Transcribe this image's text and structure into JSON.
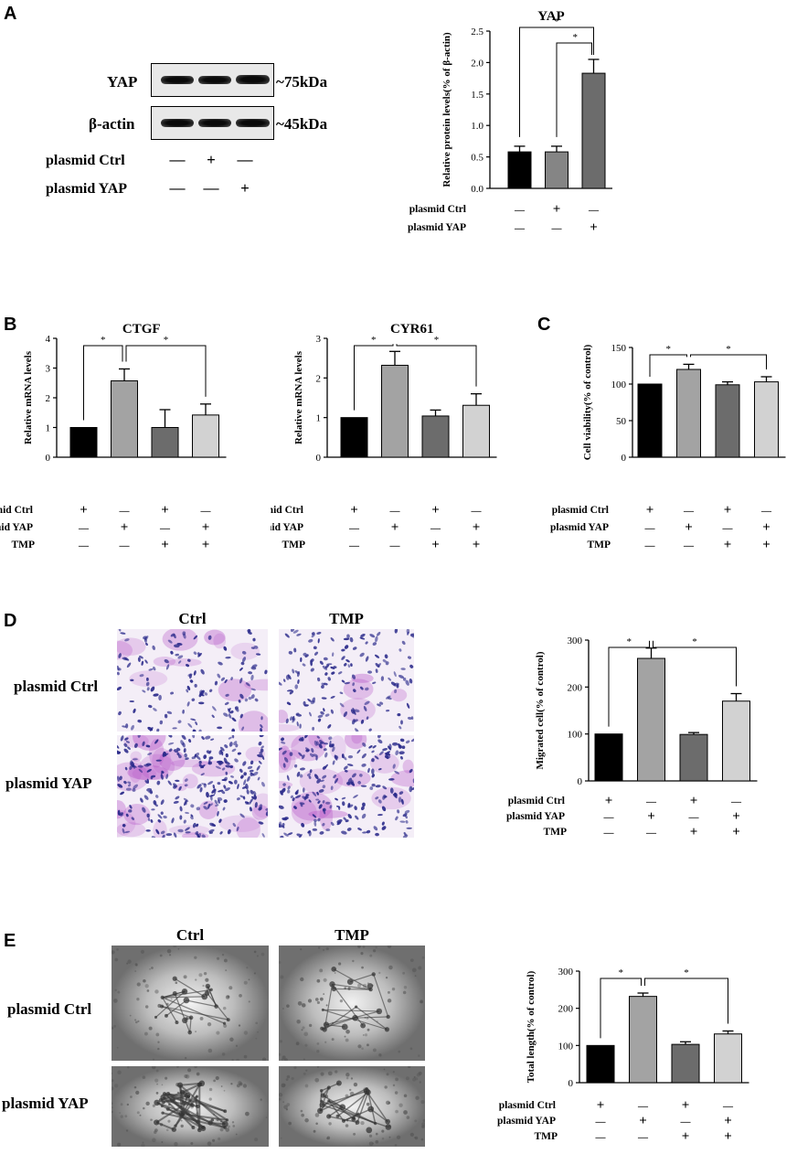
{
  "panels": {
    "A": "A",
    "B": "B",
    "C": "C",
    "D": "D",
    "E": "E"
  },
  "blot": {
    "rows": [
      {
        "name": "YAP",
        "size": "~75kDa"
      },
      {
        "name": "β-actin",
        "size": "~45kDa"
      }
    ],
    "conditions": [
      {
        "label": "plasmid Ctrl",
        "signs": [
          "—",
          "+",
          "—"
        ]
      },
      {
        "label": "plasmid YAP",
        "signs": [
          "—",
          "—",
          "+"
        ]
      }
    ]
  },
  "micro": {
    "col_labels": [
      "Ctrl",
      "TMP"
    ],
    "row_labels": [
      "plasmid Ctrl",
      "plasmid YAP"
    ]
  },
  "colors": {
    "black": "#000000",
    "mid_grey": "#858585",
    "light_grey": "#a3a3a3",
    "dark_grey": "#6c6c6c",
    "pale_grey": "#d2d2d2",
    "stain_purple": "#b14bc5",
    "nuclei_blue": "#2a2a8a",
    "tube_grey": "#8a8a8a"
  },
  "chart_data": [
    {
      "id": "yap",
      "type": "bar",
      "title": "YAP",
      "ylabel": "Relative protein levels(% of β-actin)",
      "ylim": [
        0,
        2.5
      ],
      "yticks": [
        "0.0",
        "0.5",
        "1.0",
        "1.5",
        "2.0",
        "2.5"
      ],
      "values": [
        0.58,
        0.58,
        1.83
      ],
      "errors": [
        0.09,
        0.09,
        0.22
      ],
      "colors": [
        "#000000",
        "#858585",
        "#6c6c6c"
      ],
      "conditions": [
        {
          "label": "plasmid Ctrl",
          "signs": [
            "—",
            "+",
            "—"
          ]
        },
        {
          "label": "plasmid YAP",
          "signs": [
            "—",
            "—",
            "+"
          ]
        }
      ],
      "significance": [
        {
          "from": 0,
          "to": 2,
          "label": "*"
        },
        {
          "from": 1,
          "to": 2,
          "label": "*"
        }
      ]
    },
    {
      "id": "ctgf",
      "type": "bar",
      "title": "CTGF",
      "ylabel": "Relative mRNA levels",
      "ylim": [
        0,
        4
      ],
      "yticks": [
        "0",
        "1",
        "2",
        "3",
        "4"
      ],
      "values": [
        1.0,
        2.57,
        1.0,
        1.42
      ],
      "errors": [
        0,
        0.4,
        0.6,
        0.37
      ],
      "colors": [
        "#000000",
        "#a3a3a3",
        "#6c6c6c",
        "#d2d2d2"
      ],
      "conditions": [
        {
          "label": "plasmid Ctrl",
          "signs": [
            "+",
            "—",
            "+",
            "—"
          ]
        },
        {
          "label": "plasmid YAP",
          "signs": [
            "—",
            "+",
            "—",
            "+"
          ]
        },
        {
          "label": "TMP",
          "signs": [
            "—",
            "—",
            "+",
            "+"
          ]
        }
      ],
      "significance": [
        {
          "from": 0,
          "to": 1,
          "label": "*"
        },
        {
          "from": 1,
          "to": 3,
          "label": "*"
        }
      ]
    },
    {
      "id": "cyr61",
      "type": "bar",
      "title": "CYR61",
      "ylabel": "Relative mRNA levels",
      "ylim": [
        0,
        3
      ],
      "yticks": [
        "0",
        "1",
        "2",
        "3"
      ],
      "values": [
        1.0,
        2.32,
        1.04,
        1.31
      ],
      "errors": [
        0,
        0.35,
        0.15,
        0.29
      ],
      "colors": [
        "#000000",
        "#a3a3a3",
        "#6c6c6c",
        "#d2d2d2"
      ],
      "conditions": [
        {
          "label": "plasmid Ctrl",
          "signs": [
            "+",
            "—",
            "+",
            "—"
          ]
        },
        {
          "label": "plasmid YAP",
          "signs": [
            "—",
            "+",
            "—",
            "+"
          ]
        },
        {
          "label": "TMP",
          "signs": [
            "—",
            "—",
            "+",
            "+"
          ]
        }
      ],
      "significance": [
        {
          "from": 0,
          "to": 1,
          "label": "*"
        },
        {
          "from": 1,
          "to": 3,
          "label": "*"
        }
      ]
    },
    {
      "id": "viability",
      "type": "bar",
      "title": "",
      "ylabel": "Cell viability(% of control)",
      "ylim": [
        0,
        150
      ],
      "yticks": [
        "0",
        "50",
        "100",
        "150"
      ],
      "values": [
        100,
        120,
        99,
        103
      ],
      "errors": [
        0,
        7,
        4,
        7
      ],
      "colors": [
        "#000000",
        "#a3a3a3",
        "#6c6c6c",
        "#d2d2d2"
      ],
      "conditions": [
        {
          "label": "plasmid Ctrl",
          "signs": [
            "+",
            "—",
            "+",
            "—"
          ]
        },
        {
          "label": "plasmid YAP",
          "signs": [
            "—",
            "+",
            "—",
            "+"
          ]
        },
        {
          "label": "TMP",
          "signs": [
            "—",
            "—",
            "+",
            "+"
          ]
        }
      ],
      "significance": [
        {
          "from": 0,
          "to": 1,
          "label": "*"
        },
        {
          "from": 1,
          "to": 3,
          "label": "*"
        }
      ]
    },
    {
      "id": "migration",
      "type": "bar",
      "title": "",
      "ylabel": "Migrated cell(% of control)",
      "ylim": [
        0,
        300
      ],
      "yticks": [
        "0",
        "100",
        "200",
        "300"
      ],
      "values": [
        100,
        261,
        99,
        170
      ],
      "errors": [
        0,
        22,
        4,
        16
      ],
      "colors": [
        "#000000",
        "#a3a3a3",
        "#6c6c6c",
        "#d2d2d2"
      ],
      "conditions": [
        {
          "label": "plasmid Ctrl",
          "signs": [
            "+",
            "—",
            "+",
            "—"
          ]
        },
        {
          "label": "plasmid YAP",
          "signs": [
            "—",
            "+",
            "—",
            "+"
          ]
        },
        {
          "label": "TMP",
          "signs": [
            "—",
            "—",
            "+",
            "+"
          ]
        }
      ],
      "significance": [
        {
          "from": 0,
          "to": 1,
          "label": "*"
        },
        {
          "from": 1,
          "to": 3,
          "label": "*"
        }
      ]
    },
    {
      "id": "tube",
      "type": "bar",
      "title": "",
      "ylabel": "Total length(% of control)",
      "ylim": [
        0,
        300
      ],
      "yticks": [
        "0",
        "100",
        "200",
        "300"
      ],
      "values": [
        100,
        232,
        103,
        131
      ],
      "errors": [
        0,
        9,
        7,
        8
      ],
      "colors": [
        "#000000",
        "#a3a3a3",
        "#6c6c6c",
        "#d2d2d2"
      ],
      "conditions": [
        {
          "label": "plasmid Ctrl",
          "signs": [
            "+",
            "—",
            "+",
            "—"
          ]
        },
        {
          "label": "plasmid YAP",
          "signs": [
            "—",
            "+",
            "—",
            "+"
          ]
        },
        {
          "label": "TMP",
          "signs": [
            "—",
            "—",
            "+",
            "+"
          ]
        }
      ],
      "significance": [
        {
          "from": 0,
          "to": 1,
          "label": "*"
        },
        {
          "from": 1,
          "to": 3,
          "label": "*"
        }
      ]
    }
  ]
}
